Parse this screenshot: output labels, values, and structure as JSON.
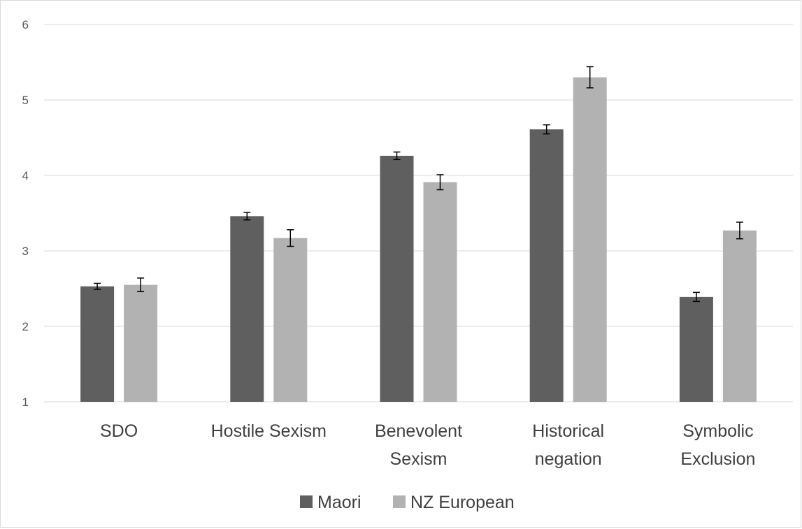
{
  "chart_data": {
    "type": "bar",
    "categories": [
      [
        "SDO"
      ],
      [
        "Hostile Sexism"
      ],
      [
        "Benevolent",
        "Sexism"
      ],
      [
        "Historical",
        "negation"
      ],
      [
        "Symbolic",
        "Exclusion"
      ]
    ],
    "series": [
      {
        "name": "Maori",
        "color": "#5f5f5f",
        "values": [
          2.53,
          3.46,
          4.26,
          4.61,
          2.39
        ],
        "error": [
          0.04,
          0.05,
          0.05,
          0.06,
          0.06
        ]
      },
      {
        "name": "NZ European",
        "color": "#b2b2b2",
        "values": [
          2.55,
          3.17,
          3.91,
          5.3,
          3.27
        ],
        "error": [
          0.09,
          0.11,
          0.1,
          0.14,
          0.11
        ]
      }
    ],
    "ylim": [
      1,
      6
    ],
    "yticks": [
      1,
      2,
      3,
      4,
      5,
      6
    ],
    "grid": true,
    "legend_position": "bottom"
  }
}
